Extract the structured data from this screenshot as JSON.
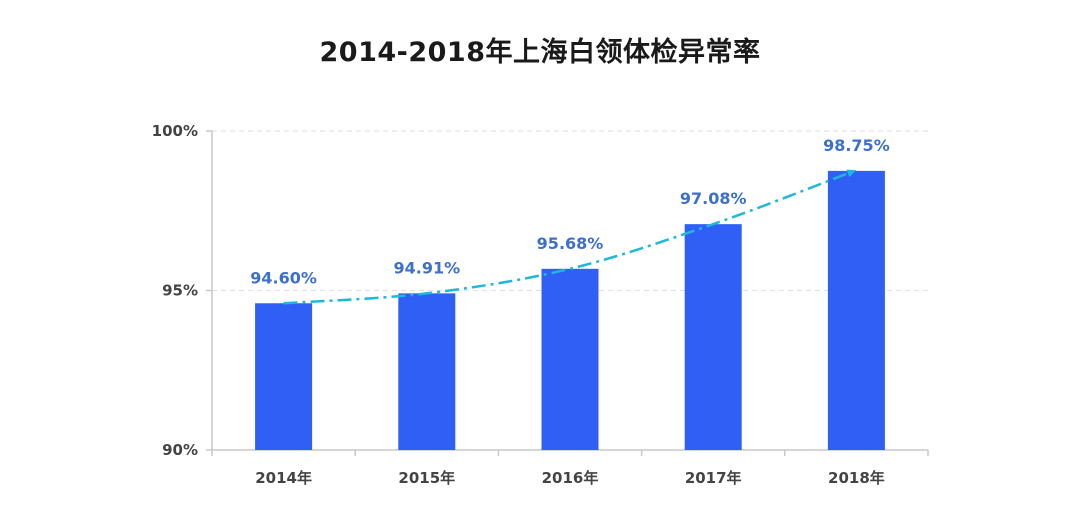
{
  "chart_data": {
    "type": "bar",
    "title": "2014-2018年上海白领体检异常率",
    "categories": [
      "2014年",
      "2015年",
      "2016年",
      "2017年",
      "2018年"
    ],
    "values": [
      94.6,
      94.91,
      95.68,
      97.08,
      98.75
    ],
    "data_labels": [
      "94.60%",
      "94.91%",
      "95.68%",
      "97.08%",
      "98.75%"
    ],
    "xlabel": "",
    "ylabel": "",
    "ylim": [
      90,
      100
    ],
    "yticks": [
      90,
      95,
      100
    ],
    "ytick_labels": [
      "90%",
      "95%",
      "100%"
    ],
    "grid": true,
    "legend": "none",
    "trend_arrow": true,
    "colors": {
      "bar": "#2f5ff5",
      "data_label": "#3d6fcf",
      "trend": "#1fb8d8",
      "grid": "#e3e3e3",
      "axis": "#c8c8c8"
    }
  }
}
